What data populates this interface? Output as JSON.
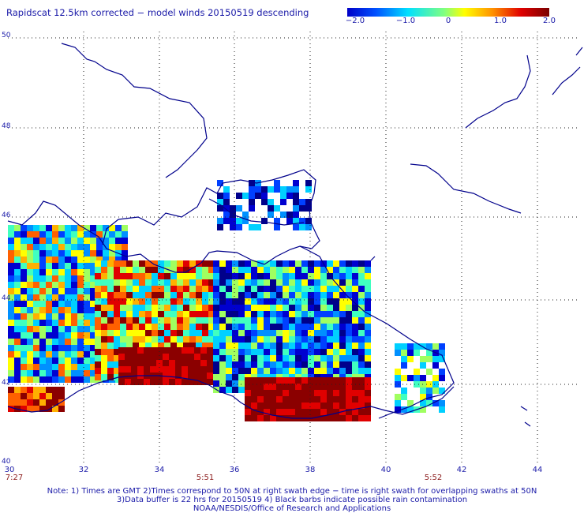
{
  "title": "Rapidscat 12.5km corrected − model winds 20150519 descending",
  "colorbar": {
    "ticks": [
      "−2.0",
      "−1.0",
      "0",
      "1.0",
      "2.0"
    ],
    "stops": [
      "#0000c8",
      "#0050ff",
      "#00e0ff",
      "#80ff80",
      "#ffff00",
      "#ff9000",
      "#e00000",
      "#7a0000"
    ]
  },
  "axes": {
    "lat_labels": [
      "50",
      "48",
      "46",
      "44",
      "42",
      "40"
    ],
    "lon_labels": [
      "30",
      "32",
      "34",
      "36",
      "38",
      "40",
      "42",
      "44"
    ]
  },
  "times": [
    "7:27",
    "5:51",
    "5:52"
  ],
  "notes": [
    "Note: 1) Times are GMT 2)Times correspond to 50N at right swath edge − time is right swath for overlapping swaths at 50N",
    "3)Data buffer is 22 hrs for 20150519 4) Black barbs indicate possible rain contamination",
    "NOAA/NESDIS/Office of Research and Applications"
  ],
  "colors": {
    "coast": "#00008b",
    "grid": "#222222",
    "text": "#1a1aa8",
    "time": "#8b1a1a"
  }
}
